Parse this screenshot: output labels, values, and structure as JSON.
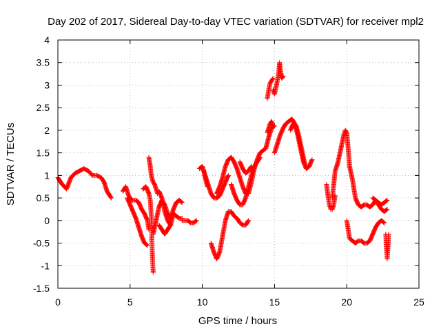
{
  "chart_data": {
    "type": "scatter",
    "title": "Day 202 of 2017, Sidereal Day-to-day VTEC variation (SDTVAR) for receiver mpl2",
    "xlabel": "GPS time / hours",
    "ylabel": "SDTVAR / TECUs",
    "xlim": [
      0,
      25
    ],
    "ylim": [
      -1.5,
      4
    ],
    "grid": true,
    "marker": "+",
    "color": "#ff0000",
    "x_ticks": [
      "0",
      "5",
      "10",
      "15",
      "20",
      "25"
    ],
    "y_ticks": [
      "-1.5",
      "-1",
      "-0.5",
      "0",
      "0.5",
      "1",
      "1.5",
      "2",
      "2.5",
      "3",
      "3.5",
      "4"
    ],
    "series": [
      {
        "name": "SDTVAR",
        "segments": [
          [
            [
              0.0,
              0.95
            ],
            [
              0.3,
              0.8
            ],
            [
              0.6,
              0.7
            ],
            [
              0.9,
              0.95
            ],
            [
              1.2,
              1.05
            ],
            [
              1.5,
              1.1
            ],
            [
              1.8,
              1.15
            ],
            [
              2.1,
              1.1
            ],
            [
              2.4,
              1.0
            ],
            [
              2.7,
              1.0
            ],
            [
              3.0,
              0.95
            ],
            [
              3.2,
              0.85
            ],
            [
              3.4,
              0.65
            ],
            [
              3.6,
              0.55
            ],
            [
              3.7,
              0.5
            ]
          ],
          [
            [
              4.5,
              0.65
            ],
            [
              4.7,
              0.75
            ],
            [
              4.9,
              0.55
            ],
            [
              5.1,
              0.45
            ],
            [
              5.4,
              0.45
            ],
            [
              5.6,
              0.4
            ],
            [
              5.8,
              0.25
            ],
            [
              6.0,
              0.15
            ],
            [
              6.2,
              0.0
            ],
            [
              6.3,
              -0.2
            ]
          ],
          [
            [
              4.8,
              0.5
            ],
            [
              5.0,
              0.35
            ],
            [
              5.2,
              0.2
            ],
            [
              5.4,
              0.05
            ],
            [
              5.6,
              -0.15
            ],
            [
              5.8,
              -0.35
            ],
            [
              6.0,
              -0.5
            ],
            [
              6.2,
              -0.55
            ]
          ],
          [
            [
              5.9,
              0.7
            ],
            [
              6.1,
              0.75
            ],
            [
              6.3,
              0.6
            ],
            [
              6.4,
              0.45
            ],
            [
              6.45,
              0.2
            ],
            [
              6.5,
              -0.1
            ],
            [
              6.5,
              -0.4
            ],
            [
              6.55,
              -0.8
            ],
            [
              6.6,
              -1.15
            ]
          ],
          [
            [
              6.3,
              1.4
            ],
            [
              6.35,
              1.3
            ],
            [
              6.4,
              1.2
            ],
            [
              6.45,
              1.05
            ],
            [
              6.5,
              0.95
            ],
            [
              6.6,
              0.85
            ],
            [
              6.7,
              0.8
            ],
            [
              6.8,
              0.7
            ],
            [
              6.9,
              0.6
            ]
          ],
          [
            [
              6.6,
              -0.3
            ],
            [
              6.8,
              0.0
            ],
            [
              7.0,
              0.3
            ],
            [
              7.2,
              0.45
            ],
            [
              7.4,
              0.35
            ],
            [
              7.6,
              0.15
            ],
            [
              7.8,
              0.05
            ],
            [
              8.0,
              0.25
            ],
            [
              8.2,
              0.4
            ],
            [
              8.4,
              0.45
            ],
            [
              8.6,
              0.4
            ]
          ],
          [
            [
              7.0,
              0.65
            ],
            [
              7.2,
              0.5
            ],
            [
              7.4,
              0.2
            ],
            [
              7.6,
              0.0
            ],
            [
              7.8,
              -0.1
            ],
            [
              8.0,
              0.15
            ],
            [
              8.2,
              0.1
            ],
            [
              8.4,
              0.05
            ],
            [
              8.6,
              0.05
            ]
          ],
          [
            [
              7.0,
              -0.1
            ],
            [
              7.2,
              -0.2
            ],
            [
              7.4,
              -0.3
            ],
            [
              7.6,
              -0.2
            ],
            [
              7.8,
              -0.1
            ]
          ],
          [
            [
              8.6,
              0.0
            ],
            [
              8.8,
              0.0
            ],
            [
              9.0,
              0.0
            ],
            [
              9.2,
              -0.05
            ],
            [
              9.4,
              -0.05
            ],
            [
              9.6,
              0.0
            ]
          ],
          [
            [
              9.8,
              1.15
            ],
            [
              10.0,
              1.2
            ],
            [
              10.2,
              1.0
            ],
            [
              10.4,
              0.8
            ],
            [
              10.6,
              0.6
            ],
            [
              10.8,
              0.5
            ],
            [
              11.0,
              0.5
            ],
            [
              11.2,
              0.55
            ],
            [
              11.4,
              0.7
            ],
            [
              11.6,
              0.85
            ],
            [
              11.8,
              1.0
            ]
          ],
          [
            [
              10.1,
              1.1
            ],
            [
              10.2,
              0.95
            ],
            [
              10.35,
              0.75
            ]
          ],
          [
            [
              10.6,
              -0.5
            ],
            [
              10.8,
              -0.7
            ],
            [
              11.0,
              -0.85
            ],
            [
              11.2,
              -0.7
            ],
            [
              11.4,
              -0.35
            ],
            [
              11.6,
              0.0
            ],
            [
              11.8,
              0.2
            ],
            [
              12.0,
              0.2
            ],
            [
              12.2,
              0.1
            ],
            [
              12.4,
              0.05
            ],
            [
              12.6,
              -0.05
            ],
            [
              12.8,
              -0.1
            ],
            [
              13.0,
              -0.1
            ],
            [
              13.2,
              0.0
            ]
          ],
          [
            [
              11.0,
              0.6
            ],
            [
              11.2,
              0.75
            ],
            [
              11.4,
              0.95
            ],
            [
              11.6,
              1.2
            ],
            [
              11.8,
              1.35
            ],
            [
              12.0,
              1.4
            ],
            [
              12.2,
              1.3
            ],
            [
              12.4,
              1.15
            ],
            [
              12.6,
              0.95
            ],
            [
              12.8,
              0.75
            ],
            [
              13.0,
              0.6
            ],
            [
              13.2,
              0.6
            ],
            [
              13.4,
              0.85
            ],
            [
              13.6,
              1.15
            ],
            [
              13.8,
              1.35
            ],
            [
              14.0,
              1.5
            ],
            [
              14.2,
              1.55
            ],
            [
              14.4,
              1.6
            ],
            [
              14.6,
              1.85
            ],
            [
              14.8,
              2.05
            ],
            [
              15.0,
              2.1
            ]
          ],
          [
            [
              12.0,
              0.8
            ],
            [
              12.2,
              0.6
            ],
            [
              12.4,
              0.45
            ],
            [
              12.6,
              0.35
            ],
            [
              12.8,
              0.35
            ],
            [
              13.0,
              0.5
            ],
            [
              13.2,
              0.75
            ],
            [
              13.4,
              1.0
            ],
            [
              13.6,
              1.2
            ],
            [
              13.8,
              1.3
            ],
            [
              14.0,
              1.4
            ]
          ],
          [
            [
              12.6,
              1.3
            ],
            [
              12.8,
              1.15
            ],
            [
              13.0,
              1.05
            ],
            [
              13.2,
              1.1
            ],
            [
              13.4,
              1.2
            ]
          ],
          [
            [
              14.5,
              2.7
            ],
            [
              14.6,
              2.9
            ],
            [
              14.7,
              3.05
            ],
            [
              14.8,
              3.1
            ],
            [
              14.9,
              3.15
            ]
          ],
          [
            [
              14.9,
              2.9
            ],
            [
              15.0,
              2.8
            ],
            [
              15.1,
              2.95
            ],
            [
              15.2,
              3.1
            ],
            [
              15.3,
              3.3
            ],
            [
              15.35,
              3.5
            ],
            [
              15.4,
              3.35
            ],
            [
              15.5,
              3.15
            ],
            [
              15.6,
              3.2
            ]
          ],
          [
            [
              14.5,
              1.95
            ],
            [
              14.6,
              2.05
            ],
            [
              14.7,
              2.15
            ],
            [
              14.8,
              2.2
            ],
            [
              14.9,
              2.1
            ]
          ],
          [
            [
              15.0,
              1.5
            ],
            [
              15.2,
              1.7
            ],
            [
              15.4,
              1.9
            ],
            [
              15.6,
              2.05
            ],
            [
              15.8,
              2.15
            ],
            [
              16.0,
              2.2
            ],
            [
              16.2,
              2.25
            ],
            [
              16.4,
              2.15
            ],
            [
              16.6,
              1.9
            ],
            [
              16.8,
              1.6
            ],
            [
              17.0,
              1.3
            ],
            [
              17.2,
              1.15
            ],
            [
              17.4,
              1.2
            ],
            [
              17.6,
              1.35
            ]
          ],
          [
            [
              16.1,
              2.0
            ],
            [
              16.3,
              2.15
            ],
            [
              16.5,
              2.1
            ],
            [
              16.7,
              1.85
            ],
            [
              16.9,
              1.55
            ],
            [
              17.1,
              1.25
            ]
          ],
          [
            [
              18.6,
              0.8
            ],
            [
              18.7,
              0.55
            ],
            [
              18.8,
              0.35
            ],
            [
              18.9,
              0.25
            ],
            [
              19.0,
              0.25
            ],
            [
              19.1,
              0.35
            ],
            [
              19.2,
              0.55
            ]
          ],
          [
            [
              19.0,
              0.5
            ],
            [
              19.1,
              0.8
            ],
            [
              19.2,
              1.1
            ],
            [
              19.4,
              1.3
            ],
            [
              19.6,
              1.6
            ],
            [
              19.8,
              1.9
            ],
            [
              19.9,
              2.0
            ],
            [
              20.0,
              1.95
            ],
            [
              20.1,
              1.6
            ],
            [
              20.2,
              1.2
            ],
            [
              20.4,
              0.9
            ],
            [
              20.6,
              0.5
            ],
            [
              20.8,
              0.35
            ],
            [
              21.0,
              0.3
            ],
            [
              21.2,
              0.35
            ],
            [
              21.4,
              0.35
            ],
            [
              21.6,
              0.3
            ],
            [
              21.8,
              0.35
            ],
            [
              22.0,
              0.45
            ],
            [
              22.2,
              0.4
            ],
            [
              22.4,
              0.35
            ],
            [
              22.6,
              0.4
            ],
            [
              22.8,
              0.45
            ]
          ],
          [
            [
              20.0,
              0.0
            ],
            [
              20.1,
              -0.2
            ],
            [
              20.2,
              -0.4
            ],
            [
              20.4,
              -0.45
            ],
            [
              20.6,
              -0.5
            ],
            [
              20.8,
              -0.45
            ],
            [
              21.0,
              -0.45
            ],
            [
              21.2,
              -0.5
            ],
            [
              21.4,
              -0.5
            ],
            [
              21.6,
              -0.45
            ],
            [
              21.8,
              -0.3
            ],
            [
              22.0,
              -0.15
            ],
            [
              22.2,
              -0.05
            ],
            [
              22.4,
              0.0
            ],
            [
              22.6,
              -0.05
            ]
          ],
          [
            [
              21.8,
              0.5
            ],
            [
              22.0,
              0.45
            ],
            [
              22.2,
              0.35
            ],
            [
              22.4,
              0.25
            ],
            [
              22.6,
              0.2
            ],
            [
              22.8,
              0.25
            ]
          ],
          [
            [
              22.7,
              -0.3
            ],
            [
              22.75,
              -0.6
            ],
            [
              22.8,
              -0.85
            ],
            [
              22.85,
              -0.6
            ],
            [
              22.9,
              -0.3
            ]
          ]
        ]
      }
    ]
  }
}
